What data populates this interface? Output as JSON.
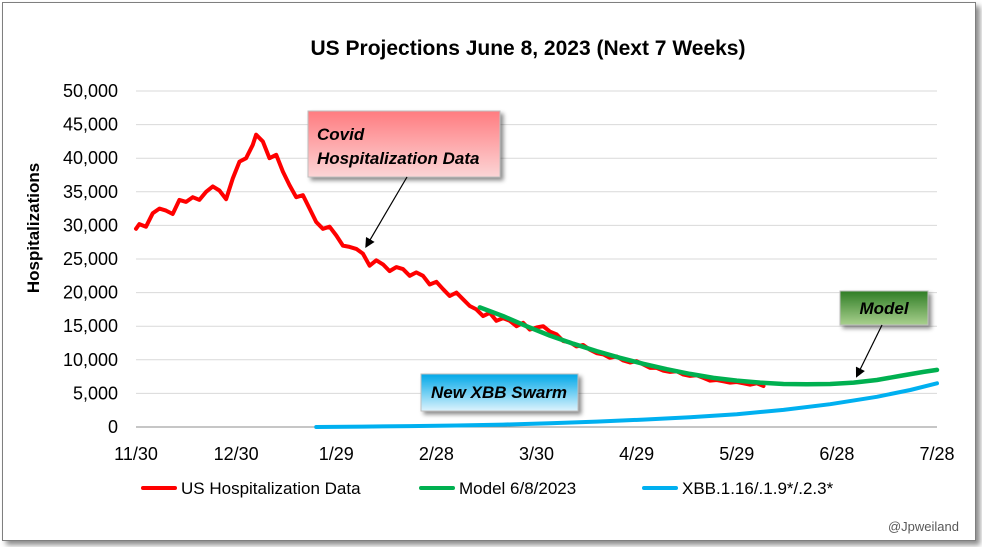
{
  "chart_data": {
    "type": "line",
    "title": "US Projections June 8, 2023 (Next 7 Weeks)",
    "xlabel": "",
    "ylabel": "Hospitalizations",
    "x_ticks": [
      "11/30",
      "12/30",
      "1/29",
      "2/28",
      "3/30",
      "4/29",
      "5/29",
      "6/28",
      "7/28"
    ],
    "x_range": [
      "2022-11-30",
      "2023-07-28"
    ],
    "y_ticks": [
      "0",
      "5,000",
      "10,000",
      "15,000",
      "20,000",
      "25,000",
      "30,000",
      "35,000",
      "40,000",
      "45,000",
      "50,000"
    ],
    "ylim": [
      0,
      50000
    ],
    "grid": "horizontal",
    "legend_position": "bottom",
    "series": [
      {
        "name": "US Hospitalization Data",
        "color": "#ff0000",
        "points": [
          [
            "2022-11-30",
            29500
          ],
          [
            "2022-12-01",
            30200
          ],
          [
            "2022-12-03",
            29800
          ],
          [
            "2022-12-05",
            31800
          ],
          [
            "2022-12-07",
            32500
          ],
          [
            "2022-12-09",
            32200
          ],
          [
            "2022-12-11",
            31700
          ],
          [
            "2022-12-13",
            33800
          ],
          [
            "2022-12-15",
            33500
          ],
          [
            "2022-12-17",
            34200
          ],
          [
            "2022-12-19",
            33800
          ],
          [
            "2022-12-21",
            35000
          ],
          [
            "2022-12-23",
            35800
          ],
          [
            "2022-12-25",
            35200
          ],
          [
            "2022-12-27",
            33900
          ],
          [
            "2022-12-29",
            37000
          ],
          [
            "2022-12-31",
            39500
          ],
          [
            "2023-01-02",
            40000
          ],
          [
            "2023-01-04",
            42000
          ],
          [
            "2023-01-05",
            43500
          ],
          [
            "2023-01-07",
            42500
          ],
          [
            "2023-01-09",
            40000
          ],
          [
            "2023-01-11",
            40500
          ],
          [
            "2023-01-13",
            38000
          ],
          [
            "2023-01-15",
            36000
          ],
          [
            "2023-01-17",
            34200
          ],
          [
            "2023-01-19",
            34500
          ],
          [
            "2023-01-21",
            32500
          ],
          [
            "2023-01-23",
            30500
          ],
          [
            "2023-01-25",
            29500
          ],
          [
            "2023-01-27",
            29800
          ],
          [
            "2023-01-29",
            28500
          ],
          [
            "2023-01-31",
            27000
          ],
          [
            "2023-02-02",
            26800
          ],
          [
            "2023-02-04",
            26500
          ],
          [
            "2023-02-06",
            25800
          ],
          [
            "2023-02-08",
            24000
          ],
          [
            "2023-02-10",
            24800
          ],
          [
            "2023-02-12",
            24200
          ],
          [
            "2023-02-14",
            23200
          ],
          [
            "2023-02-16",
            23800
          ],
          [
            "2023-02-18",
            23500
          ],
          [
            "2023-02-20",
            22500
          ],
          [
            "2023-02-22",
            23000
          ],
          [
            "2023-02-24",
            22500
          ],
          [
            "2023-02-26",
            21200
          ],
          [
            "2023-02-28",
            21600
          ],
          [
            "2023-03-02",
            20500
          ],
          [
            "2023-03-04",
            19500
          ],
          [
            "2023-03-06",
            20000
          ],
          [
            "2023-03-08",
            19000
          ],
          [
            "2023-03-10",
            18000
          ],
          [
            "2023-03-12",
            17500
          ],
          [
            "2023-03-14",
            16500
          ],
          [
            "2023-03-16",
            17000
          ],
          [
            "2023-03-18",
            15800
          ],
          [
            "2023-03-20",
            16200
          ],
          [
            "2023-03-22",
            15800
          ],
          [
            "2023-03-24",
            15000
          ],
          [
            "2023-03-26",
            15500
          ],
          [
            "2023-03-28",
            14500
          ],
          [
            "2023-03-30",
            14800
          ],
          [
            "2023-04-01",
            15000
          ],
          [
            "2023-04-03",
            14200
          ],
          [
            "2023-04-05",
            13800
          ],
          [
            "2023-04-07",
            12800
          ],
          [
            "2023-04-09",
            12600
          ],
          [
            "2023-04-11",
            12000
          ],
          [
            "2023-04-13",
            12200
          ],
          [
            "2023-04-15",
            11500
          ],
          [
            "2023-04-17",
            11000
          ],
          [
            "2023-04-19",
            10800
          ],
          [
            "2023-04-21",
            10300
          ],
          [
            "2023-04-23",
            10500
          ],
          [
            "2023-04-25",
            9900
          ],
          [
            "2023-04-27",
            9600
          ],
          [
            "2023-04-29",
            9800
          ],
          [
            "2023-05-01",
            9300
          ],
          [
            "2023-05-03",
            8800
          ],
          [
            "2023-05-05",
            8800
          ],
          [
            "2023-05-07",
            8400
          ],
          [
            "2023-05-09",
            8200
          ],
          [
            "2023-05-11",
            8300
          ],
          [
            "2023-05-13",
            7800
          ],
          [
            "2023-05-15",
            7600
          ],
          [
            "2023-05-17",
            7700
          ],
          [
            "2023-05-19",
            7300
          ],
          [
            "2023-05-21",
            6900
          ],
          [
            "2023-05-23",
            7000
          ],
          [
            "2023-05-25",
            6800
          ],
          [
            "2023-05-27",
            6600
          ],
          [
            "2023-05-29",
            6700
          ],
          [
            "2023-05-31",
            6500
          ],
          [
            "2023-06-02",
            6300
          ],
          [
            "2023-06-04",
            6500
          ],
          [
            "2023-06-06",
            6100
          ]
        ]
      },
      {
        "name": "Model 6/8/2023",
        "color": "#00b050",
        "points": [
          [
            "2023-03-13",
            17800
          ],
          [
            "2023-03-20",
            16500
          ],
          [
            "2023-03-27",
            15000
          ],
          [
            "2023-04-03",
            13600
          ],
          [
            "2023-04-10",
            12400
          ],
          [
            "2023-04-17",
            11300
          ],
          [
            "2023-04-24",
            10300
          ],
          [
            "2023-05-01",
            9400
          ],
          [
            "2023-05-08",
            8600
          ],
          [
            "2023-05-15",
            7900
          ],
          [
            "2023-05-22",
            7300
          ],
          [
            "2023-05-29",
            6900
          ],
          [
            "2023-06-05",
            6600
          ],
          [
            "2023-06-12",
            6400
          ],
          [
            "2023-06-19",
            6350
          ],
          [
            "2023-06-26",
            6400
          ],
          [
            "2023-07-03",
            6600
          ],
          [
            "2023-07-10",
            7000
          ],
          [
            "2023-07-17",
            7600
          ],
          [
            "2023-07-24",
            8200
          ],
          [
            "2023-07-28",
            8500
          ]
        ]
      },
      {
        "name": "XBB.1.16/.1.9*/.2.3*",
        "color": "#00b0f0",
        "points": [
          [
            "2023-01-23",
            0
          ],
          [
            "2023-02-06",
            60
          ],
          [
            "2023-02-20",
            130
          ],
          [
            "2023-03-06",
            230
          ],
          [
            "2023-03-20",
            360
          ],
          [
            "2023-04-03",
            550
          ],
          [
            "2023-04-17",
            800
          ],
          [
            "2023-05-01",
            1100
          ],
          [
            "2023-05-15",
            1450
          ],
          [
            "2023-05-29",
            1900
          ],
          [
            "2023-06-12",
            2550
          ],
          [
            "2023-06-26",
            3400
          ],
          [
            "2023-07-10",
            4500
          ],
          [
            "2023-07-20",
            5500
          ],
          [
            "2023-07-28",
            6500
          ]
        ]
      }
    ],
    "annotations": [
      {
        "text_lines": [
          "Covid",
          "Hospitalization Data"
        ],
        "fill_top": "#ff7c80",
        "fill_bottom": "#fcd5d6",
        "arrow_to": [
          "2023-02-07",
          26000
        ]
      },
      {
        "text_lines": [
          "Model"
        ],
        "fill_top": "#2f7d25",
        "fill_bottom": "#a9d08e",
        "arrow_to": [
          "2023-07-04",
          6700
        ]
      },
      {
        "text_lines": [
          "New XBB Swarm"
        ],
        "fill_top": "#00a8e8",
        "fill_bottom": "#ddf3fd"
      }
    ]
  },
  "credit": "@Jpweiland"
}
